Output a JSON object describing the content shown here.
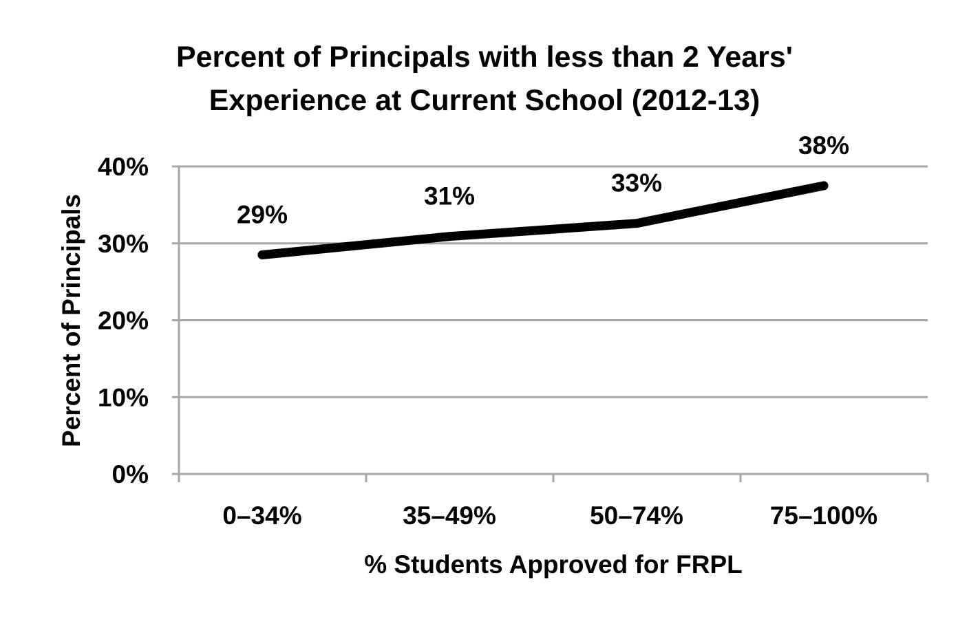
{
  "chart_data": {
    "type": "line",
    "title_lines": [
      "Percent of Principals with less than 2 Years'",
      "Experience at Current School (2012-13)"
    ],
    "xlabel": "% Students Approved for FRPL",
    "ylabel": "Percent of Principals",
    "categories": [
      "0–34%",
      "35–49%",
      "50–74%",
      "75–100%"
    ],
    "series": [
      {
        "values": [
          28.5,
          30.9,
          32.6,
          37.5
        ],
        "labels": [
          "29%",
          "31%",
          "33%",
          "38%"
        ]
      }
    ],
    "ylim": [
      0,
      40
    ],
    "yticks": [
      0,
      10,
      20,
      30,
      40
    ],
    "ytick_labels": [
      "0%",
      "10%",
      "20%",
      "30%",
      "40%"
    ],
    "grid": true,
    "legend": "none",
    "line_color": "#000000",
    "grid_color": "#a6a6a6"
  }
}
